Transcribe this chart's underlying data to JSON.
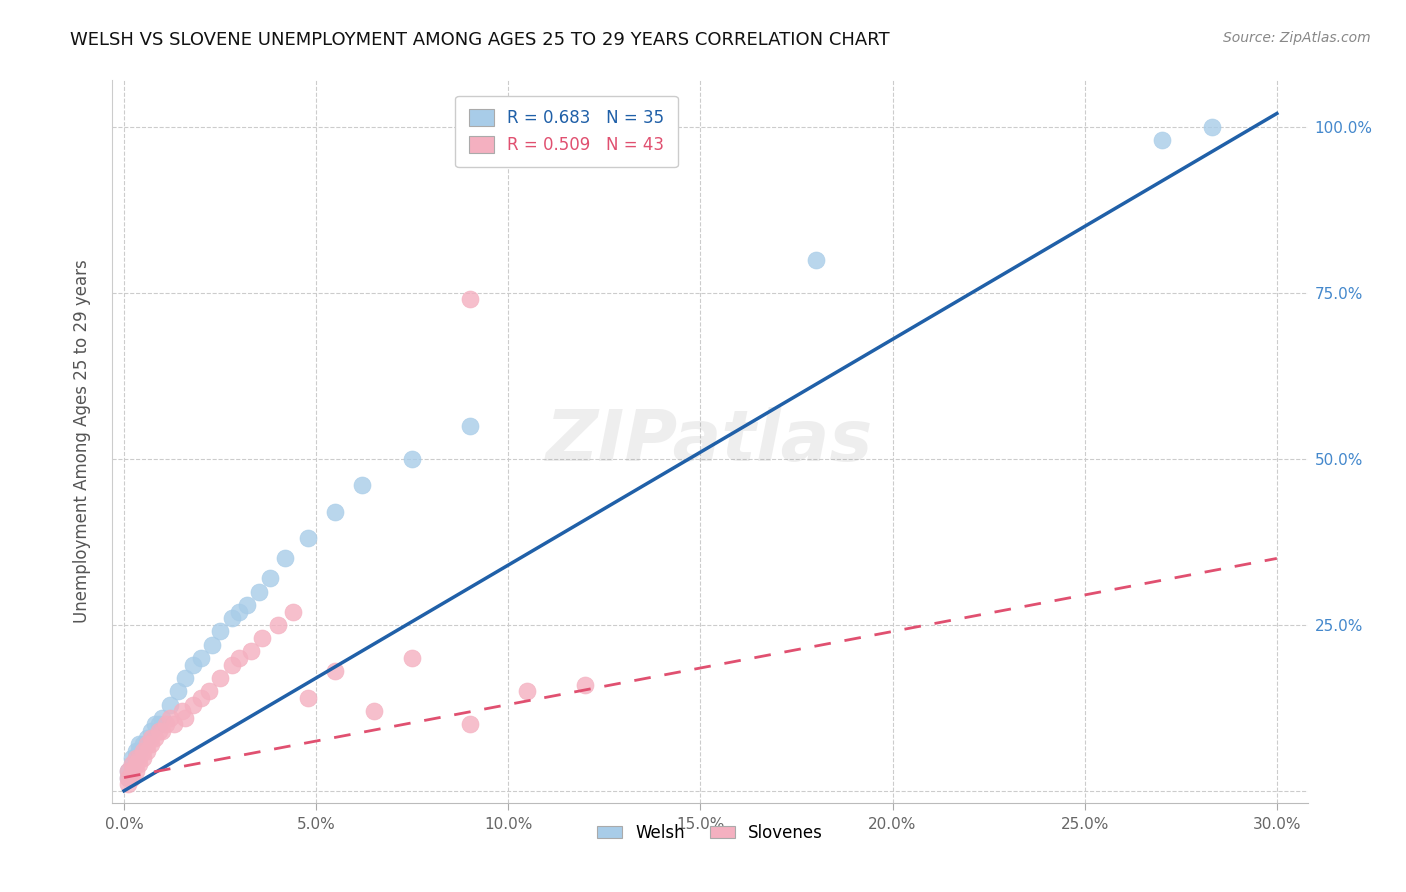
{
  "title": "WELSH VS SLOVENE UNEMPLOYMENT AMONG AGES 25 TO 29 YEARS CORRELATION CHART",
  "source": "Source: ZipAtlas.com",
  "ylabel": "Unemployment Among Ages 25 to 29 years",
  "welsh_R": 0.683,
  "welsh_N": 35,
  "slovene_R": 0.509,
  "slovene_N": 43,
  "welsh_color": "#a8cce8",
  "slovene_color": "#f4b0c0",
  "welsh_line_color": "#2060a8",
  "slovene_line_color": "#e05070",
  "watermark": "ZIPatlas",
  "xlim": [
    -0.003,
    0.308
  ],
  "ylim": [
    -0.018,
    1.07
  ],
  "x_ticks": [
    0.0,
    0.05,
    0.1,
    0.15,
    0.2,
    0.25,
    0.3
  ],
  "x_tick_labels": [
    "0.0%",
    "5.0%",
    "10.0%",
    "15.0%",
    "20.0%",
    "25.0%",
    "30.0%"
  ],
  "y_ticks": [
    0.0,
    0.25,
    0.5,
    0.75,
    1.0
  ],
  "y_tick_labels_right": [
    "",
    "25.0%",
    "50.0%",
    "75.0%",
    "100.0%"
  ],
  "welsh_x": [
    0.001,
    0.001,
    0.002,
    0.002,
    0.003,
    0.003,
    0.004,
    0.004,
    0.005,
    0.006,
    0.007,
    0.008,
    0.009,
    0.01,
    0.012,
    0.014,
    0.016,
    0.018,
    0.02,
    0.023,
    0.025,
    0.028,
    0.03,
    0.032,
    0.035,
    0.038,
    0.042,
    0.048,
    0.055,
    0.062,
    0.075,
    0.09,
    0.18,
    0.27,
    0.283
  ],
  "welsh_y": [
    0.02,
    0.03,
    0.04,
    0.05,
    0.05,
    0.06,
    0.06,
    0.07,
    0.07,
    0.08,
    0.09,
    0.1,
    0.1,
    0.11,
    0.13,
    0.15,
    0.17,
    0.19,
    0.2,
    0.22,
    0.24,
    0.26,
    0.27,
    0.28,
    0.3,
    0.32,
    0.35,
    0.38,
    0.42,
    0.46,
    0.5,
    0.55,
    0.8,
    0.98,
    1.0
  ],
  "slovene_x": [
    0.001,
    0.001,
    0.001,
    0.002,
    0.002,
    0.002,
    0.003,
    0.003,
    0.003,
    0.004,
    0.004,
    0.005,
    0.005,
    0.006,
    0.006,
    0.007,
    0.007,
    0.008,
    0.009,
    0.01,
    0.011,
    0.012,
    0.013,
    0.015,
    0.016,
    0.018,
    0.02,
    0.022,
    0.025,
    0.028,
    0.03,
    0.033,
    0.036,
    0.04,
    0.044,
    0.048,
    0.055,
    0.065,
    0.075,
    0.09,
    0.105,
    0.12,
    0.09
  ],
  "slovene_y": [
    0.01,
    0.02,
    0.03,
    0.02,
    0.03,
    0.04,
    0.03,
    0.04,
    0.05,
    0.04,
    0.05,
    0.05,
    0.06,
    0.06,
    0.07,
    0.07,
    0.08,
    0.08,
    0.09,
    0.09,
    0.1,
    0.11,
    0.1,
    0.12,
    0.11,
    0.13,
    0.14,
    0.15,
    0.17,
    0.19,
    0.2,
    0.21,
    0.23,
    0.25,
    0.27,
    0.14,
    0.18,
    0.12,
    0.2,
    0.1,
    0.15,
    0.16,
    0.74
  ]
}
